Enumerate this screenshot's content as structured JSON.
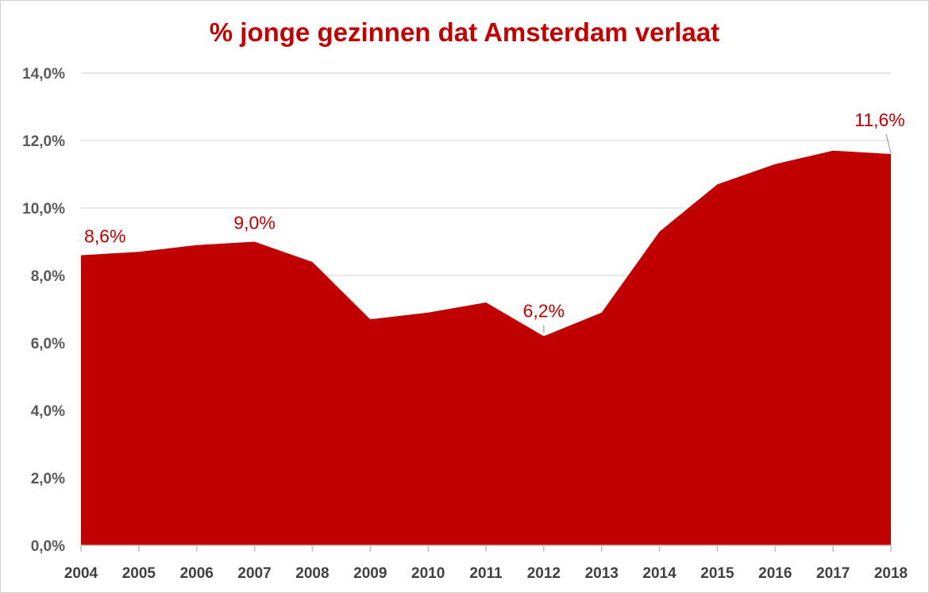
{
  "chart_data": {
    "type": "area",
    "title": "% jonge gezinnen dat Amsterdam verlaat",
    "xlabel": "",
    "ylabel": "",
    "x": [
      "2004",
      "2005",
      "2006",
      "2007",
      "2008",
      "2009",
      "2010",
      "2011",
      "2012",
      "2013",
      "2014",
      "2015",
      "2016",
      "2017",
      "2018"
    ],
    "series": [
      {
        "values": [
          8.6,
          8.7,
          8.9,
          9.0,
          8.4,
          6.7,
          6.9,
          7.2,
          6.2,
          6.9,
          9.3,
          10.7,
          11.3,
          11.7,
          11.6
        ]
      }
    ],
    "ylim": [
      0,
      14
    ],
    "yticks": [
      0,
      2,
      4,
      6,
      8,
      10,
      12,
      14
    ],
    "ytick_labels": [
      "0,0%",
      "2,0%",
      "4,0%",
      "6,0%",
      "8,0%",
      "10,0%",
      "12,0%",
      "14,0%"
    ],
    "data_labels": [
      {
        "x": "2004",
        "label": "8,6%"
      },
      {
        "x": "2007",
        "label": "9,0%"
      },
      {
        "x": "2012",
        "label": "6,2%"
      },
      {
        "x": "2018",
        "label": "11,6%"
      }
    ],
    "grid": true,
    "legend": "none",
    "colors": {
      "area": "#c00000",
      "title": "#c00000",
      "grid": "#d9d9d9",
      "axis": "#bfbfbf"
    }
  }
}
